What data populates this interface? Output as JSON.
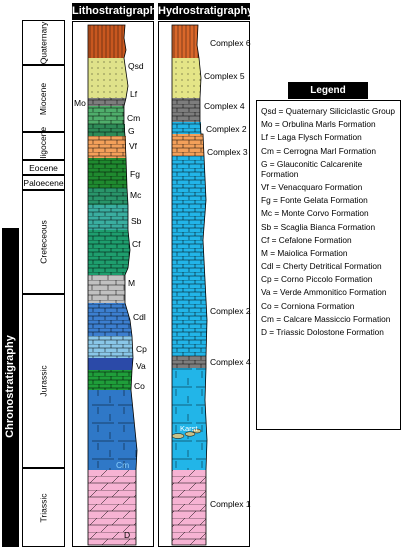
{
  "headers": {
    "litho": "Lithostratigraphy",
    "hydro": "Hydrostratigraphy",
    "chrono": "Chronostratigraphy",
    "legend": "Legend"
  },
  "periods": [
    {
      "id": "quaternary",
      "label": "Quaternary"
    },
    {
      "id": "miocene",
      "label": "Miocene"
    },
    {
      "id": "oligocene",
      "label": "Oligocene"
    },
    {
      "id": "eocene",
      "label": "Eocene"
    },
    {
      "id": "paleocene",
      "label": "Paloecene"
    },
    {
      "id": "creteceous",
      "label": "Creteceous"
    },
    {
      "id": "jurassic",
      "label": "Jurassic"
    },
    {
      "id": "triassic",
      "label": "Triassic"
    }
  ],
  "litho_labels": {
    "qsd": "Qsd",
    "lf": "Lf",
    "mo": "Mo",
    "cm_top": "Cm",
    "g": "G",
    "vf": "Vf",
    "fg": "Fg",
    "mc": "Mc",
    "sb": "Sb",
    "cf": "Cf",
    "m": "M",
    "cdl": "Cdl",
    "cp": "Cp",
    "va": "Va",
    "co": "Co",
    "cm_bottom": "Cm",
    "d": "D"
  },
  "hydro_labels": {
    "c6": "Complex 6",
    "c5": "Complex 5",
    "c4_top": "Complex 4",
    "c2_top": "Complex 2",
    "c3": "Complex 3",
    "c2_mid": "Complex 2",
    "c4_low": "Complex 4",
    "karst": "Karst",
    "c1": "Complex 1"
  },
  "legend_items": [
    "Qsd = Quaternary Siliciclastic Group",
    "Mo = Orbulina Marls Formation",
    "Lf = Laga Flysch Formation",
    "Cm = Cerrogna Marl Formation",
    "G = Glauconitic Calcarenite Formation",
    "Vf = Venacquaro Formation",
    "Fg = Fonte Gelata Formation",
    "Mc = Monte Corvo Formation",
    "Sb = Scaglia Bianca Formation",
    "Cf = Cefalone Formation",
    "M = Maiolica Formation",
    "Cdl = Cherty Detritical Formation",
    "Cp = Corno Piccolo Formation",
    "Va = Verde Ammonitico Formation",
    "Co = Corniona Formation",
    "Cm = Calcare Massiccio Formation",
    "D = Triassic Dolostone Formation"
  ],
  "colors": {
    "quaternary": "#c8571f",
    "flysch": "#dfe28a",
    "marl_gray": "#7d7d7d",
    "green_light": "#4fae6b",
    "glauconitic": "#2e8b57",
    "orange": "#f3a05a",
    "green_dark": "#1f8a2f",
    "teal": "#3aaea0",
    "gray_light": "#c0c0c0",
    "blue_mid": "#3c7fd0",
    "blue_light": "#8ac7e8",
    "blue_dark": "#2b4aa8",
    "massiccio": "#2f78c7",
    "triassic_pink": "#f6b3d3",
    "hydro_cyan": "#22b5e8",
    "hydro_yellow": "#e4e587",
    "hydro_orange": "#d9672a"
  }
}
